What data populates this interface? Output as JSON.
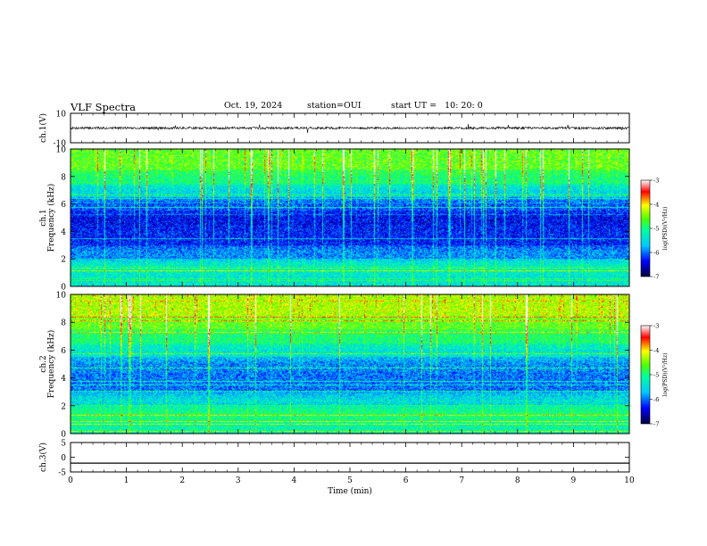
{
  "header": {
    "title": "VLF Spectra",
    "date": "Oct. 19, 2024",
    "station": "station=OUI",
    "start": "start UT =   10: 20: 0"
  },
  "chart_data": [
    {
      "type": "line",
      "panel": "ch1-waveform",
      "ylabel": "ch.1(V)",
      "ylim": [
        -10,
        10
      ],
      "yticks": [
        "10",
        "-10"
      ],
      "x": [
        0,
        10
      ],
      "series": [
        {
          "values": [
            0,
            0
          ]
        }
      ],
      "trace": "noisy signal around 0 V with occasional spikes of about ±3 V"
    },
    {
      "type": "heatmap",
      "panel": "ch1-spectrogram",
      "ylabel": "ch.1\nFrequency (kHz)",
      "ylim": [
        0,
        10
      ],
      "yticks": [
        "0",
        "2",
        "4",
        "6",
        "8",
        "10"
      ],
      "xlim": [
        0,
        10
      ],
      "colorbar": {
        "label": "log(PSD)(V²/Hz)",
        "range": [
          -7,
          -3
        ],
        "ticks": [
          "-3",
          "-4",
          "-5",
          "-6",
          "-7"
        ]
      },
      "bands_khz_log_psd": [
        [
          0,
          1,
          -5.4
        ],
        [
          1,
          2,
          -5.3
        ],
        [
          2,
          3,
          -5.9
        ],
        [
          3,
          4.5,
          -6.3
        ],
        [
          4.5,
          5.5,
          -6.4
        ],
        [
          5.5,
          6.5,
          -6.1
        ],
        [
          6.5,
          7.5,
          -5.5
        ],
        [
          7.5,
          8.5,
          -5.0
        ],
        [
          8.5,
          10,
          -4.6
        ]
      ]
    },
    {
      "type": "heatmap",
      "panel": "ch2-spectrogram",
      "ylabel": "ch.2\nFrequency (kHz)",
      "ylim": [
        0,
        10
      ],
      "yticks": [
        "0",
        "2",
        "4",
        "6",
        "8",
        "10"
      ],
      "xlim": [
        0,
        10
      ],
      "colorbar": {
        "label": "log(PSD)(V²/Hz)",
        "range": [
          -7,
          -3
        ],
        "ticks": [
          "-3",
          "-4",
          "-5",
          "-6",
          "-7"
        ]
      },
      "bands_khz_log_psd": [
        [
          0,
          1,
          -5.2
        ],
        [
          1,
          2,
          -5.0
        ],
        [
          2,
          3,
          -5.5
        ],
        [
          3,
          4.5,
          -6.0
        ],
        [
          4.5,
          5.5,
          -5.9
        ],
        [
          5.5,
          6.5,
          -5.4
        ],
        [
          6.5,
          7.5,
          -5.0
        ],
        [
          7.5,
          8.5,
          -4.6
        ],
        [
          8.5,
          10,
          -4.3
        ]
      ]
    },
    {
      "type": "line",
      "panel": "ch3-waveform",
      "ylabel": "ch.3(V)",
      "ylim": [
        -5,
        5
      ],
      "yticks": [
        "5",
        "0",
        "-5"
      ],
      "x": [
        0,
        10
      ],
      "series": [
        {
          "values": [
            -2,
            -2
          ]
        }
      ],
      "xlabel": "Time  (min)",
      "xticks": [
        "0",
        "1",
        "2",
        "3",
        "4",
        "5",
        "6",
        "7",
        "8",
        "9",
        "10"
      ]
    }
  ]
}
